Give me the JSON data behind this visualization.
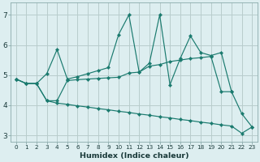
{
  "x": [
    0,
    1,
    2,
    3,
    4,
    5,
    6,
    7,
    8,
    9,
    10,
    11,
    12,
    13,
    14,
    15,
    16,
    17,
    18,
    19,
    20,
    21,
    22,
    23
  ],
  "line_top": [
    4.87,
    4.72,
    4.72,
    5.05,
    5.85,
    4.87,
    4.95,
    5.05,
    5.15,
    5.25,
    6.35,
    7.0,
    5.1,
    5.4,
    7.0,
    4.68,
    5.55,
    6.3,
    5.75,
    5.65,
    5.75,
    4.45,
    null,
    null
  ],
  "line_mid": [
    4.87,
    4.72,
    4.72,
    4.15,
    4.15,
    4.82,
    4.85,
    4.87,
    4.89,
    4.91,
    4.93,
    5.07,
    5.1,
    5.3,
    5.35,
    5.45,
    5.5,
    5.55,
    5.58,
    5.62,
    4.45,
    4.45,
    3.72,
    3.28
  ],
  "line_bot": [
    4.87,
    4.72,
    4.72,
    4.15,
    4.07,
    4.03,
    3.98,
    3.94,
    3.89,
    3.85,
    3.8,
    3.76,
    3.71,
    3.67,
    3.62,
    3.58,
    3.53,
    3.49,
    3.44,
    3.4,
    3.35,
    3.31,
    3.07,
    3.28
  ],
  "color": "#1a7a6e",
  "bg_color": "#ddeef0",
  "grid_color": "#b8cccc",
  "xlabel": "Humidex (Indice chaleur)",
  "ylim": [
    2.8,
    7.4
  ],
  "xlim": [
    -0.5,
    23.5
  ],
  "yticks": [
    3,
    4,
    5,
    6,
    7
  ],
  "xticks": [
    0,
    1,
    2,
    3,
    4,
    5,
    6,
    7,
    8,
    9,
    10,
    11,
    12,
    13,
    14,
    15,
    16,
    17,
    18,
    19,
    20,
    21,
    22,
    23
  ]
}
